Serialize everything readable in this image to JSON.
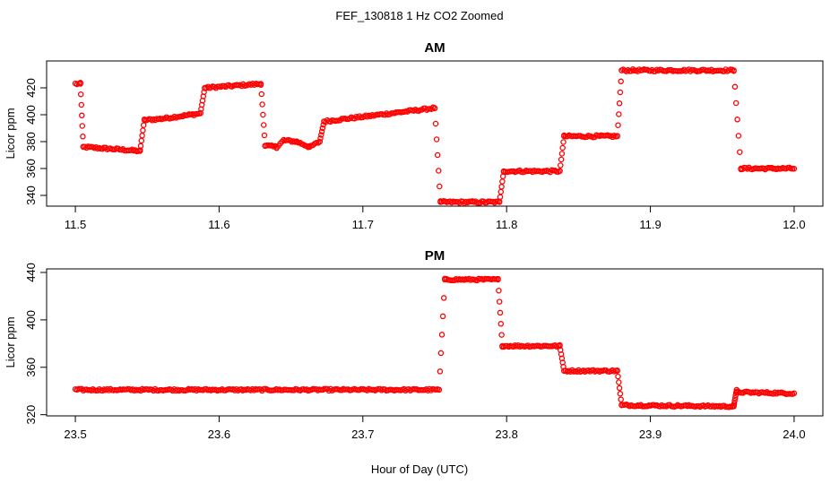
{
  "figure": {
    "suptitle": "FEF_130818  1 Hz CO2 Zoomed",
    "xlabel": "Hour of Day (UTC)",
    "marker_color": "#ff0000"
  },
  "chart_data": [
    {
      "type": "scatter",
      "title": "AM",
      "xlabel": "",
      "ylabel": "Licor ppm",
      "xlim": [
        11.48,
        12.02
      ],
      "ylim": [
        332,
        440
      ],
      "xticks": [
        "11.5",
        "11.6",
        "11.7",
        "11.8",
        "11.9",
        "12.0"
      ],
      "yticks": [
        "340",
        "360",
        "380",
        "400",
        "420"
      ],
      "ytick_values": [
        340,
        360,
        380,
        400,
        420
      ],
      "segments": [
        {
          "x0": 11.5,
          "x1": 11.5035,
          "y0": 423,
          "y1": 423
        },
        {
          "x0": 11.5035,
          "x1": 11.5055,
          "y0": 423,
          "y1": 376
        },
        {
          "x0": 11.5055,
          "x1": 11.52,
          "y0": 376,
          "y1": 375
        },
        {
          "x0": 11.52,
          "x1": 11.545,
          "y0": 375,
          "y1": 373
        },
        {
          "x0": 11.545,
          "x1": 11.548,
          "y0": 373,
          "y1": 396
        },
        {
          "x0": 11.548,
          "x1": 11.56,
          "y0": 396,
          "y1": 397
        },
        {
          "x0": 11.56,
          "x1": 11.587,
          "y0": 397,
          "y1": 401
        },
        {
          "x0": 11.587,
          "x1": 11.59,
          "y0": 401,
          "y1": 420
        },
        {
          "x0": 11.59,
          "x1": 11.629,
          "y0": 420,
          "y1": 423
        },
        {
          "x0": 11.629,
          "x1": 11.632,
          "y0": 423,
          "y1": 377
        },
        {
          "x0": 11.632,
          "x1": 11.64,
          "y0": 377,
          "y1": 376
        },
        {
          "x0": 11.64,
          "x1": 11.645,
          "y0": 376,
          "y1": 381
        },
        {
          "x0": 11.645,
          "x1": 11.654,
          "y0": 381,
          "y1": 380
        },
        {
          "x0": 11.654,
          "x1": 11.663,
          "y0": 380,
          "y1": 376
        },
        {
          "x0": 11.663,
          "x1": 11.67,
          "y0": 376,
          "y1": 380
        },
        {
          "x0": 11.67,
          "x1": 11.673,
          "y0": 380,
          "y1": 395
        },
        {
          "x0": 11.673,
          "x1": 11.75,
          "y0": 395,
          "y1": 405
        },
        {
          "x0": 11.75,
          "x1": 11.754,
          "y0": 405,
          "y1": 335
        },
        {
          "x0": 11.754,
          "x1": 11.795,
          "y0": 335,
          "y1": 335
        },
        {
          "x0": 11.795,
          "x1": 11.798,
          "y0": 335,
          "y1": 358
        },
        {
          "x0": 11.798,
          "x1": 11.837,
          "y0": 358,
          "y1": 358
        },
        {
          "x0": 11.837,
          "x1": 11.84,
          "y0": 358,
          "y1": 384
        },
        {
          "x0": 11.84,
          "x1": 11.877,
          "y0": 384,
          "y1": 384
        },
        {
          "x0": 11.877,
          "x1": 11.88,
          "y0": 384,
          "y1": 433
        },
        {
          "x0": 11.88,
          "x1": 11.958,
          "y0": 433,
          "y1": 433
        },
        {
          "x0": 11.958,
          "x1": 11.963,
          "y0": 433,
          "y1": 360
        },
        {
          "x0": 11.963,
          "x1": 12.0,
          "y0": 360,
          "y1": 360
        }
      ]
    },
    {
      "type": "scatter",
      "title": "PM",
      "xlabel": "Hour of Day (UTC)",
      "ylabel": "Licor ppm",
      "xlim": [
        23.48,
        24.02
      ],
      "ylim": [
        319,
        443
      ],
      "xticks": [
        "23.5",
        "23.6",
        "23.7",
        "23.8",
        "23.9",
        "24.0"
      ],
      "yticks": [
        "320",
        "360",
        "400",
        "440"
      ],
      "ytick_values": [
        320,
        360,
        400,
        440
      ],
      "segments": [
        {
          "x0": 23.5,
          "x1": 23.753,
          "y0": 341,
          "y1": 341
        },
        {
          "x0": 23.753,
          "x1": 23.757,
          "y0": 341,
          "y1": 434
        },
        {
          "x0": 23.757,
          "x1": 23.794,
          "y0": 434,
          "y1": 434
        },
        {
          "x0": 23.794,
          "x1": 23.797,
          "y0": 434,
          "y1": 378
        },
        {
          "x0": 23.797,
          "x1": 23.837,
          "y0": 378,
          "y1": 378
        },
        {
          "x0": 23.837,
          "x1": 23.84,
          "y0": 378,
          "y1": 357
        },
        {
          "x0": 23.84,
          "x1": 23.877,
          "y0": 357,
          "y1": 357
        },
        {
          "x0": 23.877,
          "x1": 23.88,
          "y0": 357,
          "y1": 328
        },
        {
          "x0": 23.88,
          "x1": 23.958,
          "y0": 328,
          "y1": 327
        },
        {
          "x0": 23.958,
          "x1": 23.96,
          "y0": 327,
          "y1": 341
        },
        {
          "x0": 23.96,
          "x1": 24.0,
          "y0": 339,
          "y1": 338
        }
      ]
    }
  ]
}
